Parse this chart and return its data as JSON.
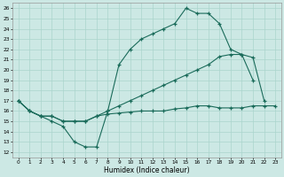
{
  "xlabel": "Humidex (Indice chaleur)",
  "bg_color": "#cce8e4",
  "grid_color": "#aad4cc",
  "line_color": "#1a6b5a",
  "xlim": [
    -0.5,
    23.5
  ],
  "ylim": [
    11.5,
    26.5
  ],
  "xticks": [
    0,
    1,
    2,
    3,
    4,
    5,
    6,
    7,
    8,
    9,
    10,
    11,
    12,
    13,
    14,
    15,
    16,
    17,
    18,
    19,
    20,
    21,
    22,
    23
  ],
  "yticks": [
    12,
    13,
    14,
    15,
    16,
    17,
    18,
    19,
    20,
    21,
    22,
    23,
    24,
    25,
    26
  ],
  "series1_x": [
    0,
    1,
    2,
    3,
    4,
    5,
    6,
    7,
    8,
    9,
    10,
    11,
    12,
    13,
    14,
    15,
    16,
    17,
    18,
    19,
    20,
    21
  ],
  "series1_y": [
    17,
    16,
    15.5,
    15,
    14.5,
    13,
    12.5,
    12.5,
    16,
    20.5,
    22,
    23,
    23.5,
    24,
    24.5,
    26,
    25.5,
    25.5,
    24.5,
    22,
    21.5,
    19
  ],
  "series2_x": [
    0,
    1,
    2,
    3,
    4,
    5,
    6,
    7,
    8,
    9,
    10,
    11,
    12,
    13,
    14,
    15,
    16,
    17,
    18,
    19,
    20,
    21,
    22
  ],
  "series2_y": [
    17,
    16,
    15.5,
    15.5,
    15,
    15,
    15,
    15.5,
    16,
    16.5,
    17,
    17.5,
    18,
    18.5,
    19,
    19.5,
    20,
    20.5,
    21.3,
    21.5,
    21.5,
    21.2,
    17
  ],
  "series3_x": [
    0,
    1,
    2,
    3,
    4,
    5,
    6,
    7,
    8,
    9,
    10,
    11,
    12,
    13,
    14,
    15,
    16,
    17,
    18,
    19,
    20,
    21,
    22,
    23
  ],
  "series3_y": [
    17,
    16,
    15.5,
    15.5,
    15,
    15,
    15,
    15.5,
    15.7,
    15.8,
    15.9,
    16,
    16,
    16,
    16.2,
    16.3,
    16.5,
    16.5,
    16.3,
    16.3,
    16.3,
    16.5,
    16.5,
    16.5
  ]
}
